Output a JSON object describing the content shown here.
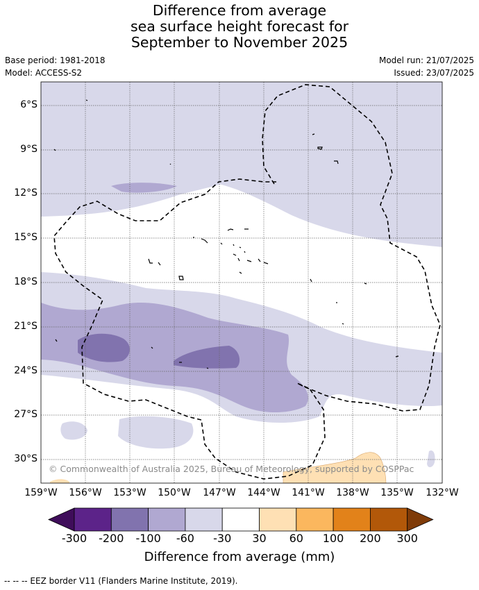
{
  "title_lines": [
    "Difference from average",
    "sea surface height forecast for",
    "September to November 2025"
  ],
  "base_period": "Base period: 1981-2018",
  "model": "Model: ACCESS-S2",
  "model_run": "Model run: 21/07/2025",
  "issued": "Issued: 23/07/2025",
  "lat_labels": [
    "6°S",
    "9°S",
    "12°S",
    "15°S",
    "18°S",
    "21°S",
    "24°S",
    "27°S",
    "30°S"
  ],
  "lon_labels": [
    "159°W",
    "156°W",
    "153°W",
    "150°W",
    "147°W",
    "144°W",
    "141°W",
    "138°W",
    "135°W",
    "132°W"
  ],
  "copyright": "© Commonwealth of Australia 2025, Bureau of Meteorology, supported by COSPPac",
  "colorbar": {
    "labels": [
      "-300",
      "-200",
      "-100",
      "-60",
      "-30",
      "30",
      "60",
      "100",
      "200",
      "300"
    ],
    "colors": [
      "#3f0d5a",
      "#5c2389",
      "#8173ae",
      "#b0a8d1",
      "#d8d8ea",
      "#ffffff",
      "#fee0b4",
      "#fbb75e",
      "#e2821a",
      "#b25809",
      "#7f3b08"
    ],
    "title": "Difference from average (mm)"
  },
  "footnote": "--  --  -- EEZ border V11 (Flanders Marine Institute, 2019)."
}
